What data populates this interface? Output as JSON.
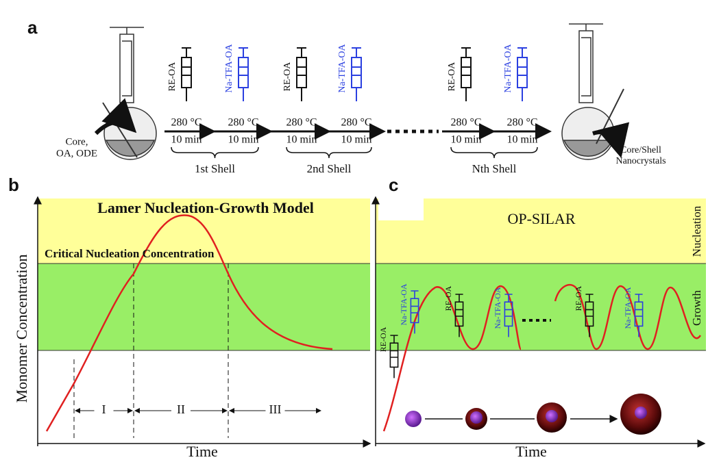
{
  "panel_a": {
    "label": "a",
    "left_flask_label": [
      "Core,",
      "OA, ODE"
    ],
    "steps": [
      {
        "reagent": "RE-OA",
        "temperature": "280 °C",
        "time": "10 min"
      },
      {
        "reagent": "Na-TFA-OA",
        "temperature": "280 °C",
        "time": "10 min"
      },
      {
        "reagent": "RE-OA",
        "temperature": "280 °C",
        "time": "10 min"
      },
      {
        "reagent": "Na-TFA-OA",
        "temperature": "280 °C",
        "time": "10 min"
      },
      {
        "reagent": "RE-OA",
        "temperature": "280 °C",
        "time": "10 min"
      },
      {
        "reagent": "Na-TFA-OA",
        "temperature": "280 °C",
        "time": "10 min"
      }
    ],
    "shells": [
      "1st Shell",
      "2nd Shell",
      "Nth Shell"
    ],
    "right_flask_label": [
      "Core/Shell",
      "Nanocrystals"
    ]
  },
  "panel_b": {
    "label": "b",
    "title": "Lamer Nucleation-Growth Model",
    "threshold_label": "Critical Nucleation Concentration",
    "y_axis_label": "Monomer Concentration",
    "x_axis_label": "Time",
    "stages": [
      "I",
      "II",
      "III"
    ]
  },
  "panel_c": {
    "label": "c",
    "title": "OP-SILAR",
    "zone_labels": [
      "Nucleation",
      "Growth"
    ],
    "injections": [
      "RE-OA",
      "Na-TFA-OA",
      "RE-OA",
      "Na-TFA-OA",
      "RE-OA",
      "Na-TFA-OA"
    ],
    "x_axis_label": "Time"
  }
}
